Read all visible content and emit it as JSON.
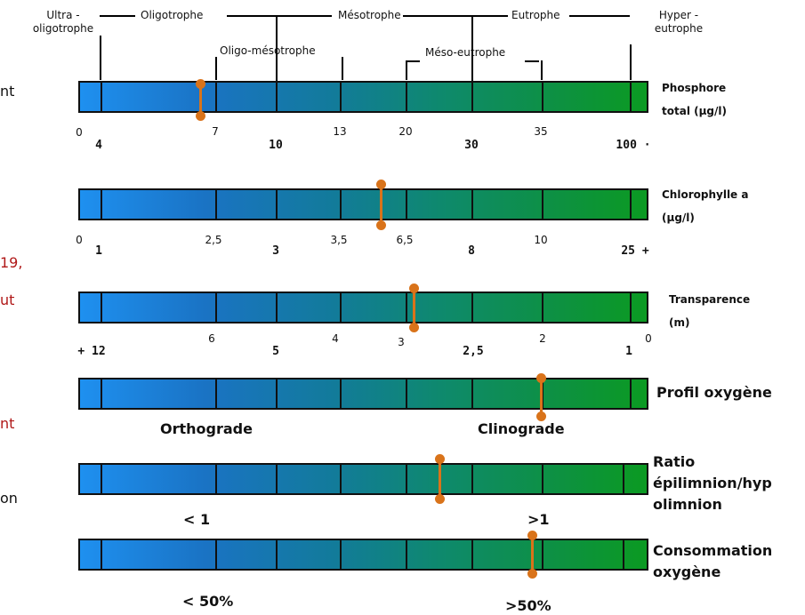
{
  "categories": {
    "ultra": "Ultra -\noligotrophe",
    "oligo": "Oligotrophe",
    "meso": "Mésotrophe",
    "eutro": "Eutrophe",
    "hyper": "Hyper -\neutrophe",
    "oligo_meso": "Oligo-mésotrophe",
    "meso_eutro": "Méso-eutrophe"
  },
  "cut_left": [
    "nt",
    "19,",
    "ut",
    "nt",
    "on"
  ],
  "bars": {
    "phosphore": {
      "label": "Phosphore\ntotal (µg/l)",
      "ticks_top": [
        "0",
        "7",
        "13",
        "20",
        "35"
      ],
      "ticks_bold": [
        "4",
        "10",
        "30",
        "100 ·"
      ]
    },
    "chlorophylle": {
      "label": "Chlorophylle a\n(µg/l)",
      "ticks_top": [
        "0",
        "2,5",
        "3,5",
        "6,5",
        "10"
      ],
      "ticks_bold": [
        "1",
        "3",
        "8",
        "25 +"
      ]
    },
    "transparence": {
      "label": "Transparence\n(m)",
      "ticks_top": [
        "6",
        "4",
        "3",
        "2",
        "0"
      ],
      "ticks_bold": [
        "+ 12",
        "5",
        "2,5",
        "1"
      ]
    },
    "oxygene_profil": {
      "label": "Profil oxygène",
      "segment_left": "Orthograde",
      "segment_right": "Clinograde"
    },
    "ratio": {
      "label": "Ratio\népilimnion/hyp\nolimnion",
      "segment_left": "< 1",
      "segment_right": ">1"
    },
    "consommation": {
      "label": "Consommation\noxygène",
      "segment_left": "< 50%",
      "segment_right": ">50%"
    }
  },
  "marker_color": "#d9731a",
  "bar_colors": {
    "start": "#1e90f0",
    "end": "#0b9a22"
  }
}
